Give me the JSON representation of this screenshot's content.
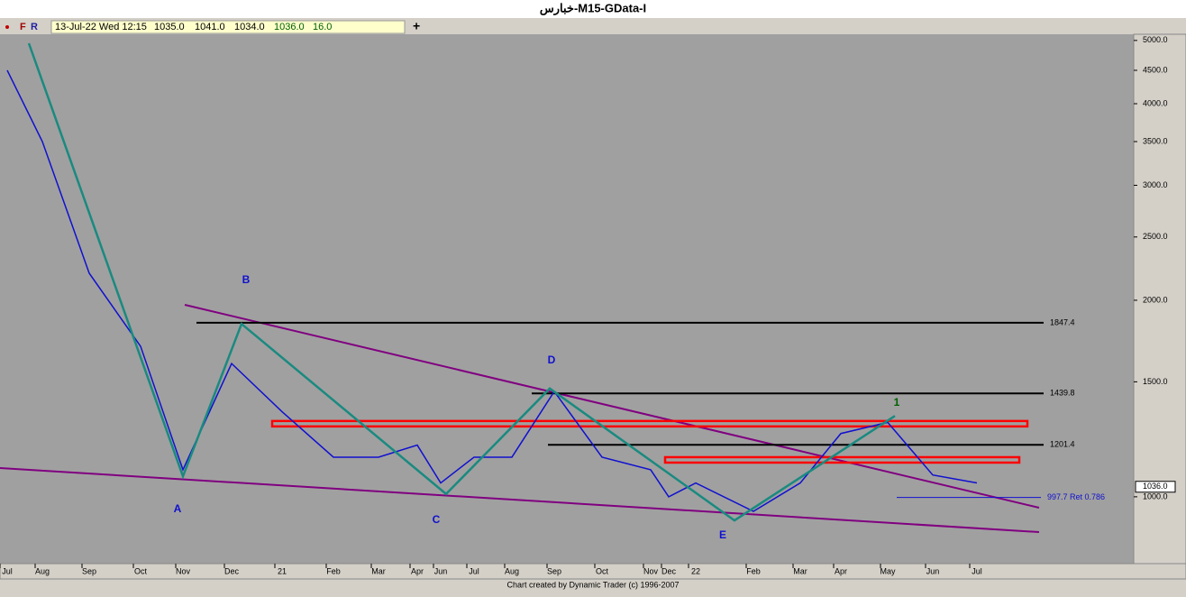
{
  "window_title": "خبارس-M15-GData-I",
  "toolbar": {
    "buttons": [
      "F",
      "R"
    ],
    "date": "13-Jul-22 Wed 12:15",
    "open": "1035.0",
    "high": "1041.0",
    "low": "1034.0",
    "close": "1036.0",
    "volume": "16.0",
    "add": "+"
  },
  "footer": "Chart created by Dynamic Trader  (c) 1996-2007",
  "chart_data": {
    "type": "line",
    "log_scale": true,
    "price_color": "#1010d0",
    "categories": [
      "Jul",
      "Aug",
      "Sep",
      "Oct",
      "Nov",
      "Dec",
      "21",
      "Feb",
      "Mar",
      "Apr",
      "Jun",
      "Jul",
      "Aug",
      "Sep",
      "Oct",
      "Nov",
      "Dec",
      "22",
      "Feb",
      "Mar",
      "Apr",
      "May",
      "Jun",
      "Jul"
    ],
    "values": [
      4500,
      3500,
      2200,
      1700,
      1100,
      1600,
      1350,
      1150,
      1150,
      1200,
      1050,
      1150,
      1150,
      1450,
      1150,
      1100,
      1000,
      1050,
      950,
      1050,
      1250,
      1300,
      1080,
      1050
    ],
    "ylim": [
      790,
      5110
    ],
    "yticks": [
      {
        "value": 1000,
        "label": "1000.0"
      },
      {
        "value": 1500,
        "label": "1500.0"
      },
      {
        "value": 2000,
        "label": "2000.0"
      },
      {
        "value": 2500,
        "label": "2500.0"
      },
      {
        "value": 3000,
        "label": "3000.0"
      },
      {
        "value": 3500,
        "label": "3500.0"
      },
      {
        "value": 4000,
        "label": "4000.0"
      },
      {
        "value": 4500,
        "label": "4500.0"
      },
      {
        "value": 5000,
        "label": "5000.0"
      }
    ],
    "waves": {
      "color": "#1a8a80",
      "labels": [
        null,
        "A",
        "B",
        "C",
        "D",
        "E",
        "1"
      ],
      "values": [
        4950,
        1075,
        1840,
        1010,
        1465,
        920,
        1330
      ]
    },
    "levels": [
      1847.4,
      1439.8,
      1201.4
    ],
    "retracement": {
      "value": 997.7,
      "label": "997.7 Ret 0.786"
    },
    "last_price": {
      "value": 1036,
      "label": "1036.0"
    },
    "zones": [
      1294,
      1139
    ]
  }
}
